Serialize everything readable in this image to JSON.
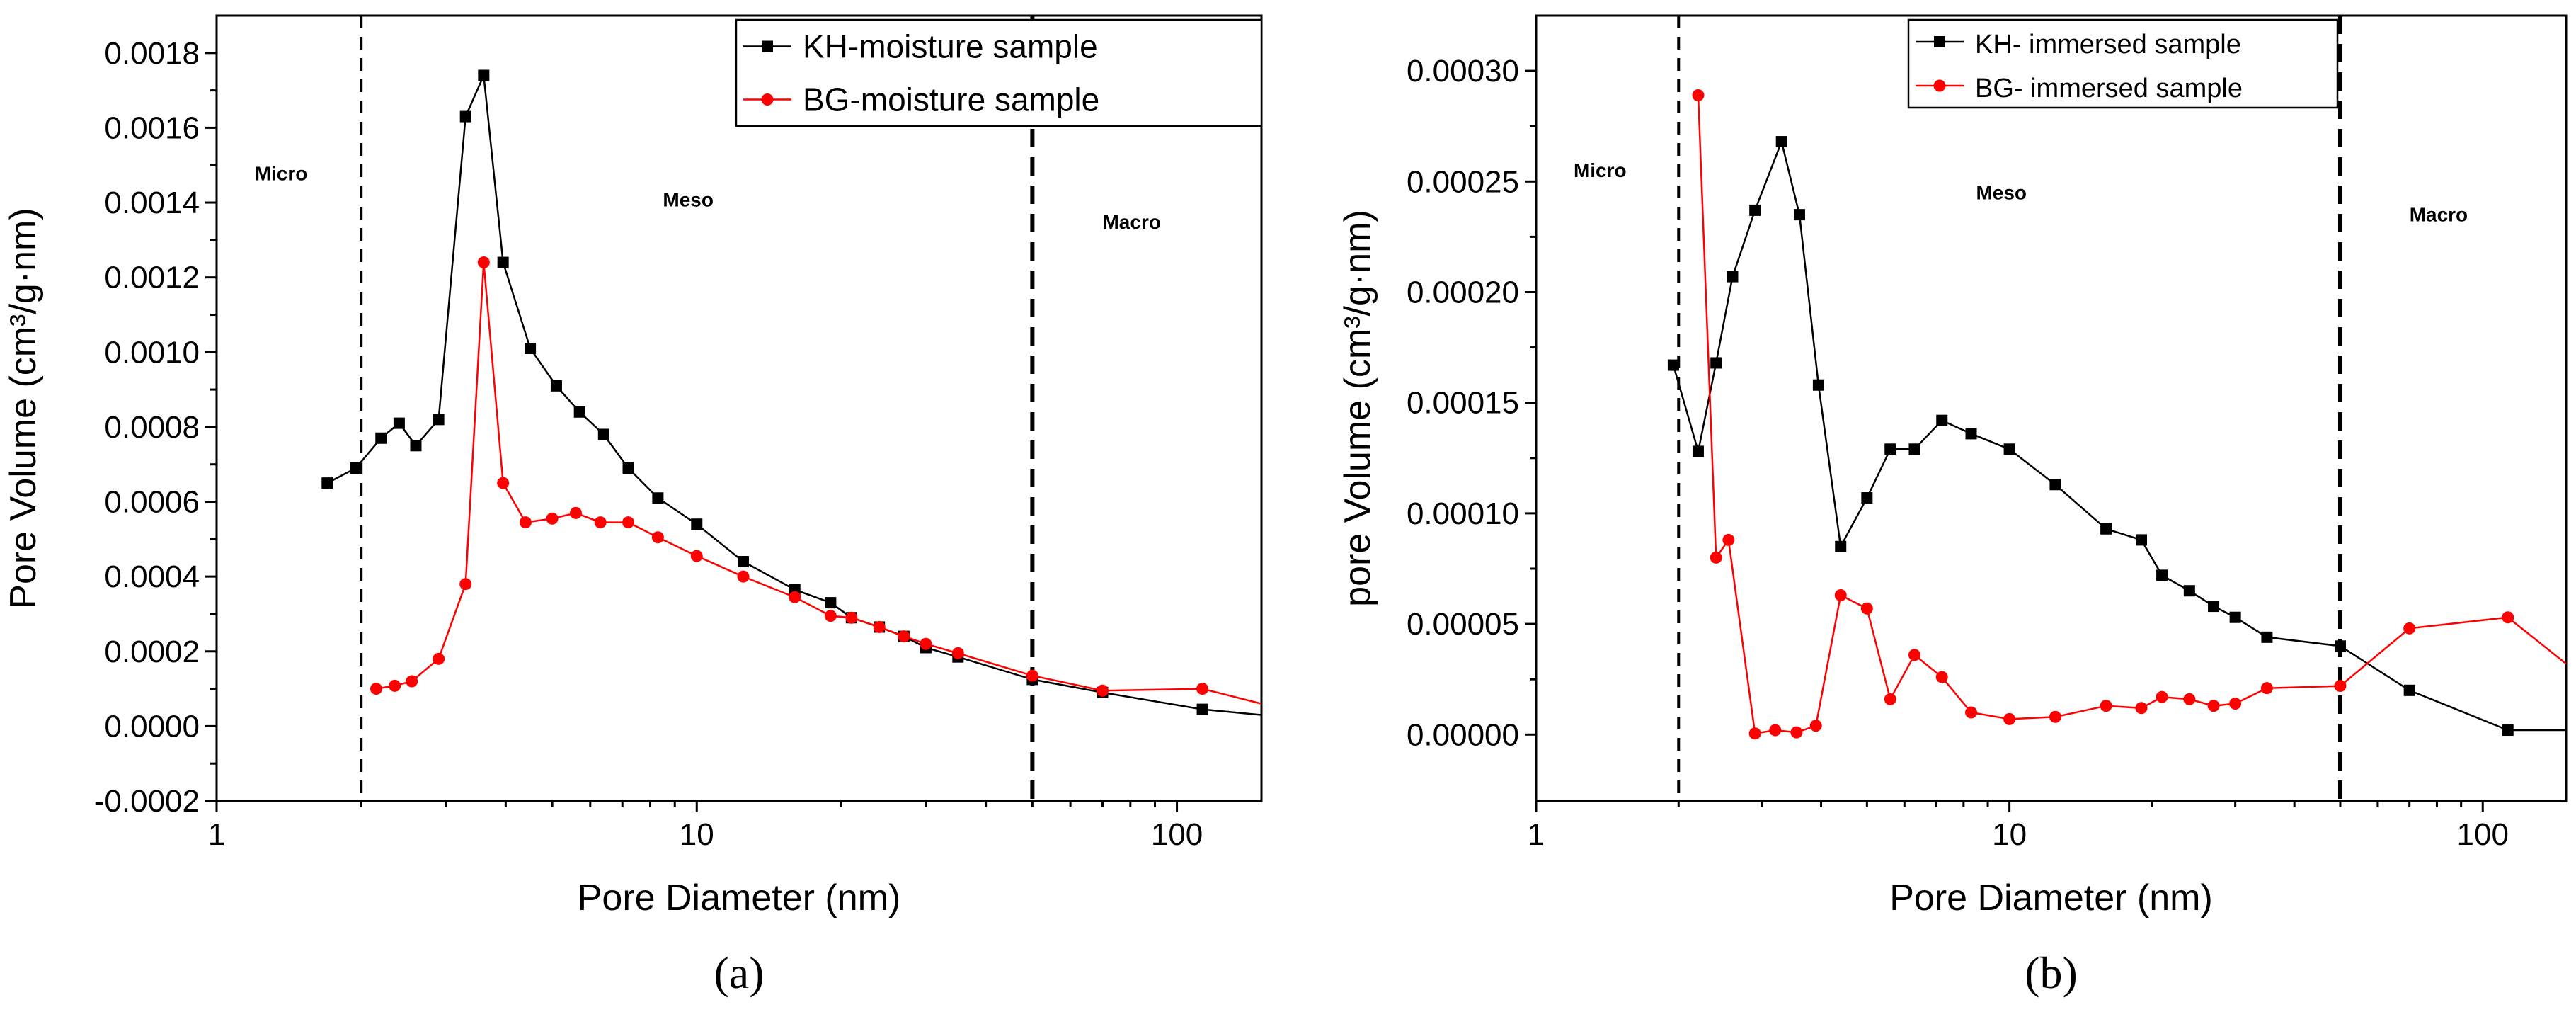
{
  "colors": {
    "series_kh": "#000000",
    "series_bg": "#ff0000",
    "axis": "#000000"
  },
  "chart_data": [
    {
      "type": "line",
      "panel_label": "(a)",
      "xscale": "log",
      "xlabel": "Pore Diameter (nm)",
      "ylabel": "Pore Volume (cm³/g·nm)",
      "xlim": [
        1,
        150
      ],
      "ylim": [
        -0.0002,
        0.0019
      ],
      "xticks": [
        1,
        10,
        100
      ],
      "xtick_labels": [
        "1",
        "10",
        "100"
      ],
      "yticks": [
        -0.0002,
        0,
        0.0002,
        0.0004,
        0.0006,
        0.0008,
        0.001,
        0.0012,
        0.0014,
        0.0016,
        0.0018
      ],
      "ytick_labels": [
        "-0.0002",
        "0.0000",
        "0.0002",
        "0.0004",
        "0.0006",
        "0.0008",
        "0.0010",
        "0.0012",
        "0.0014",
        "0.0016",
        "0.0018"
      ],
      "vlines": [
        2,
        50
      ],
      "regions": [
        {
          "label": "Micro",
          "x": 1.2,
          "y": 0.00146
        },
        {
          "label": "Meso",
          "x": 8.5,
          "y": 0.00139
        },
        {
          "label": "Macro",
          "x": 70,
          "y": 0.00133
        }
      ],
      "legend": {
        "position": "top-right",
        "entries": [
          "KH-moisture sample",
          "BG-moisture sample"
        ]
      },
      "series": [
        {
          "name": "KH-moisture sample",
          "color": "#000000",
          "marker": "square",
          "x": [
            1.7,
            1.95,
            2.2,
            2.4,
            2.6,
            2.9,
            3.3,
            3.6,
            3.95,
            4.5,
            5.1,
            5.7,
            6.4,
            7.2,
            8.3,
            10,
            12.5,
            16,
            19,
            21,
            24,
            27,
            30,
            35,
            50,
            70,
            113,
            150
          ],
          "y": [
            0.00065,
            0.00069,
            0.00077,
            0.00081,
            0.00075,
            0.00082,
            0.00163,
            0.00174,
            0.00124,
            0.00101,
            0.00091,
            0.00084,
            0.00078,
            0.00069,
            0.00061,
            0.00054,
            0.00044,
            0.000365,
            0.00033,
            0.00029,
            0.000265,
            0.00024,
            0.00021,
            0.000185,
            0.000125,
            9e-05,
            4.5e-05,
            3e-05
          ],
          "marked_points": 27
        },
        {
          "name": "BG-moisture sample",
          "color": "#ff0000",
          "marker": "circle",
          "x": [
            2.15,
            2.35,
            2.55,
            2.9,
            3.3,
            3.6,
            3.95,
            4.4,
            5,
            5.6,
            6.3,
            7.2,
            8.3,
            10,
            12.5,
            16,
            19,
            21,
            24,
            27,
            30,
            35,
            50,
            70,
            113,
            150
          ],
          "y": [
            0.0001,
            0.000108,
            0.00012,
            0.00018,
            0.00038,
            0.00124,
            0.00065,
            0.000545,
            0.000555,
            0.00057,
            0.000545,
            0.000545,
            0.000505,
            0.000455,
            0.0004,
            0.000345,
            0.000295,
            0.00029,
            0.000265,
            0.00024,
            0.00022,
            0.000195,
            0.000135,
            9.5e-05,
            0.0001,
            6e-05
          ],
          "marked_points": 25
        }
      ]
    },
    {
      "type": "line",
      "panel_label": "(b)",
      "xscale": "log",
      "xlabel": "Pore Diameter (nm)",
      "ylabel": "pore Volume (cm³/g·nm)",
      "xlim": [
        1,
        150
      ],
      "ylim": [
        -3e-05,
        0.000325
      ],
      "xticks": [
        1,
        10,
        100
      ],
      "xtick_labels": [
        "1",
        "10",
        "100"
      ],
      "yticks": [
        0,
        5e-05,
        0.0001,
        0.00015,
        0.0002,
        0.00025,
        0.0003
      ],
      "ytick_labels": [
        "0.00000",
        "0.00005",
        "0.00010",
        "0.00015",
        "0.00020",
        "0.00025",
        "0.00030"
      ],
      "vlines": [
        2,
        50
      ],
      "regions": [
        {
          "label": "Micro",
          "x": 1.2,
          "y": 0.000252
        },
        {
          "label": "Meso",
          "x": 8.5,
          "y": 0.000242
        },
        {
          "label": "Macro",
          "x": 70,
          "y": 0.000232
        }
      ],
      "legend": {
        "position": "top-right",
        "entries": [
          "KH- immersed sample",
          "BG- immersed sample"
        ]
      },
      "series": [
        {
          "name": "KH- immersed sample",
          "color": "#000000",
          "marker": "square",
          "x": [
            1.95,
            2.2,
            2.4,
            2.6,
            2.9,
            3.3,
            3.6,
            3.95,
            4.4,
            5,
            5.6,
            6.3,
            7.2,
            8.3,
            10,
            12.5,
            16,
            19,
            21,
            24,
            27,
            30,
            35,
            50,
            70,
            113,
            150
          ],
          "y": [
            0.000167,
            0.000128,
            0.000168,
            0.000207,
            0.000237,
            0.000268,
            0.000235,
            0.000158,
            8.5e-05,
            0.000107,
            0.000129,
            0.000129,
            0.000142,
            0.000136,
            0.000129,
            0.000113,
            9.3e-05,
            8.8e-05,
            7.2e-05,
            6.5e-05,
            5.8e-05,
            5.3e-05,
            4.4e-05,
            4e-05,
            2e-05,
            2e-06,
            2e-06
          ],
          "marked_points": 26
        },
        {
          "name": "BG- immersed sample",
          "color": "#ff0000",
          "marker": "circle",
          "x": [
            2.2,
            2.4,
            2.55,
            2.9,
            3.2,
            3.55,
            3.9,
            4.4,
            5,
            5.6,
            6.3,
            7.2,
            8.3,
            10,
            12.5,
            16,
            19,
            21,
            24,
            27,
            30,
            35,
            50,
            70,
            113,
            150
          ],
          "y": [
            0.000289,
            8e-05,
            8.8e-05,
            5e-07,
            2e-06,
            1e-06,
            4e-06,
            6.3e-05,
            5.7e-05,
            1.6e-05,
            3.6e-05,
            2.6e-05,
            1e-05,
            7e-06,
            8e-06,
            1.3e-05,
            1.2e-05,
            1.7e-05,
            1.6e-05,
            1.3e-05,
            1.4e-05,
            2.1e-05,
            2.2e-05,
            4.8e-05,
            5.3e-05,
            3.2e-05
          ],
          "marked_points": 25
        }
      ]
    }
  ]
}
